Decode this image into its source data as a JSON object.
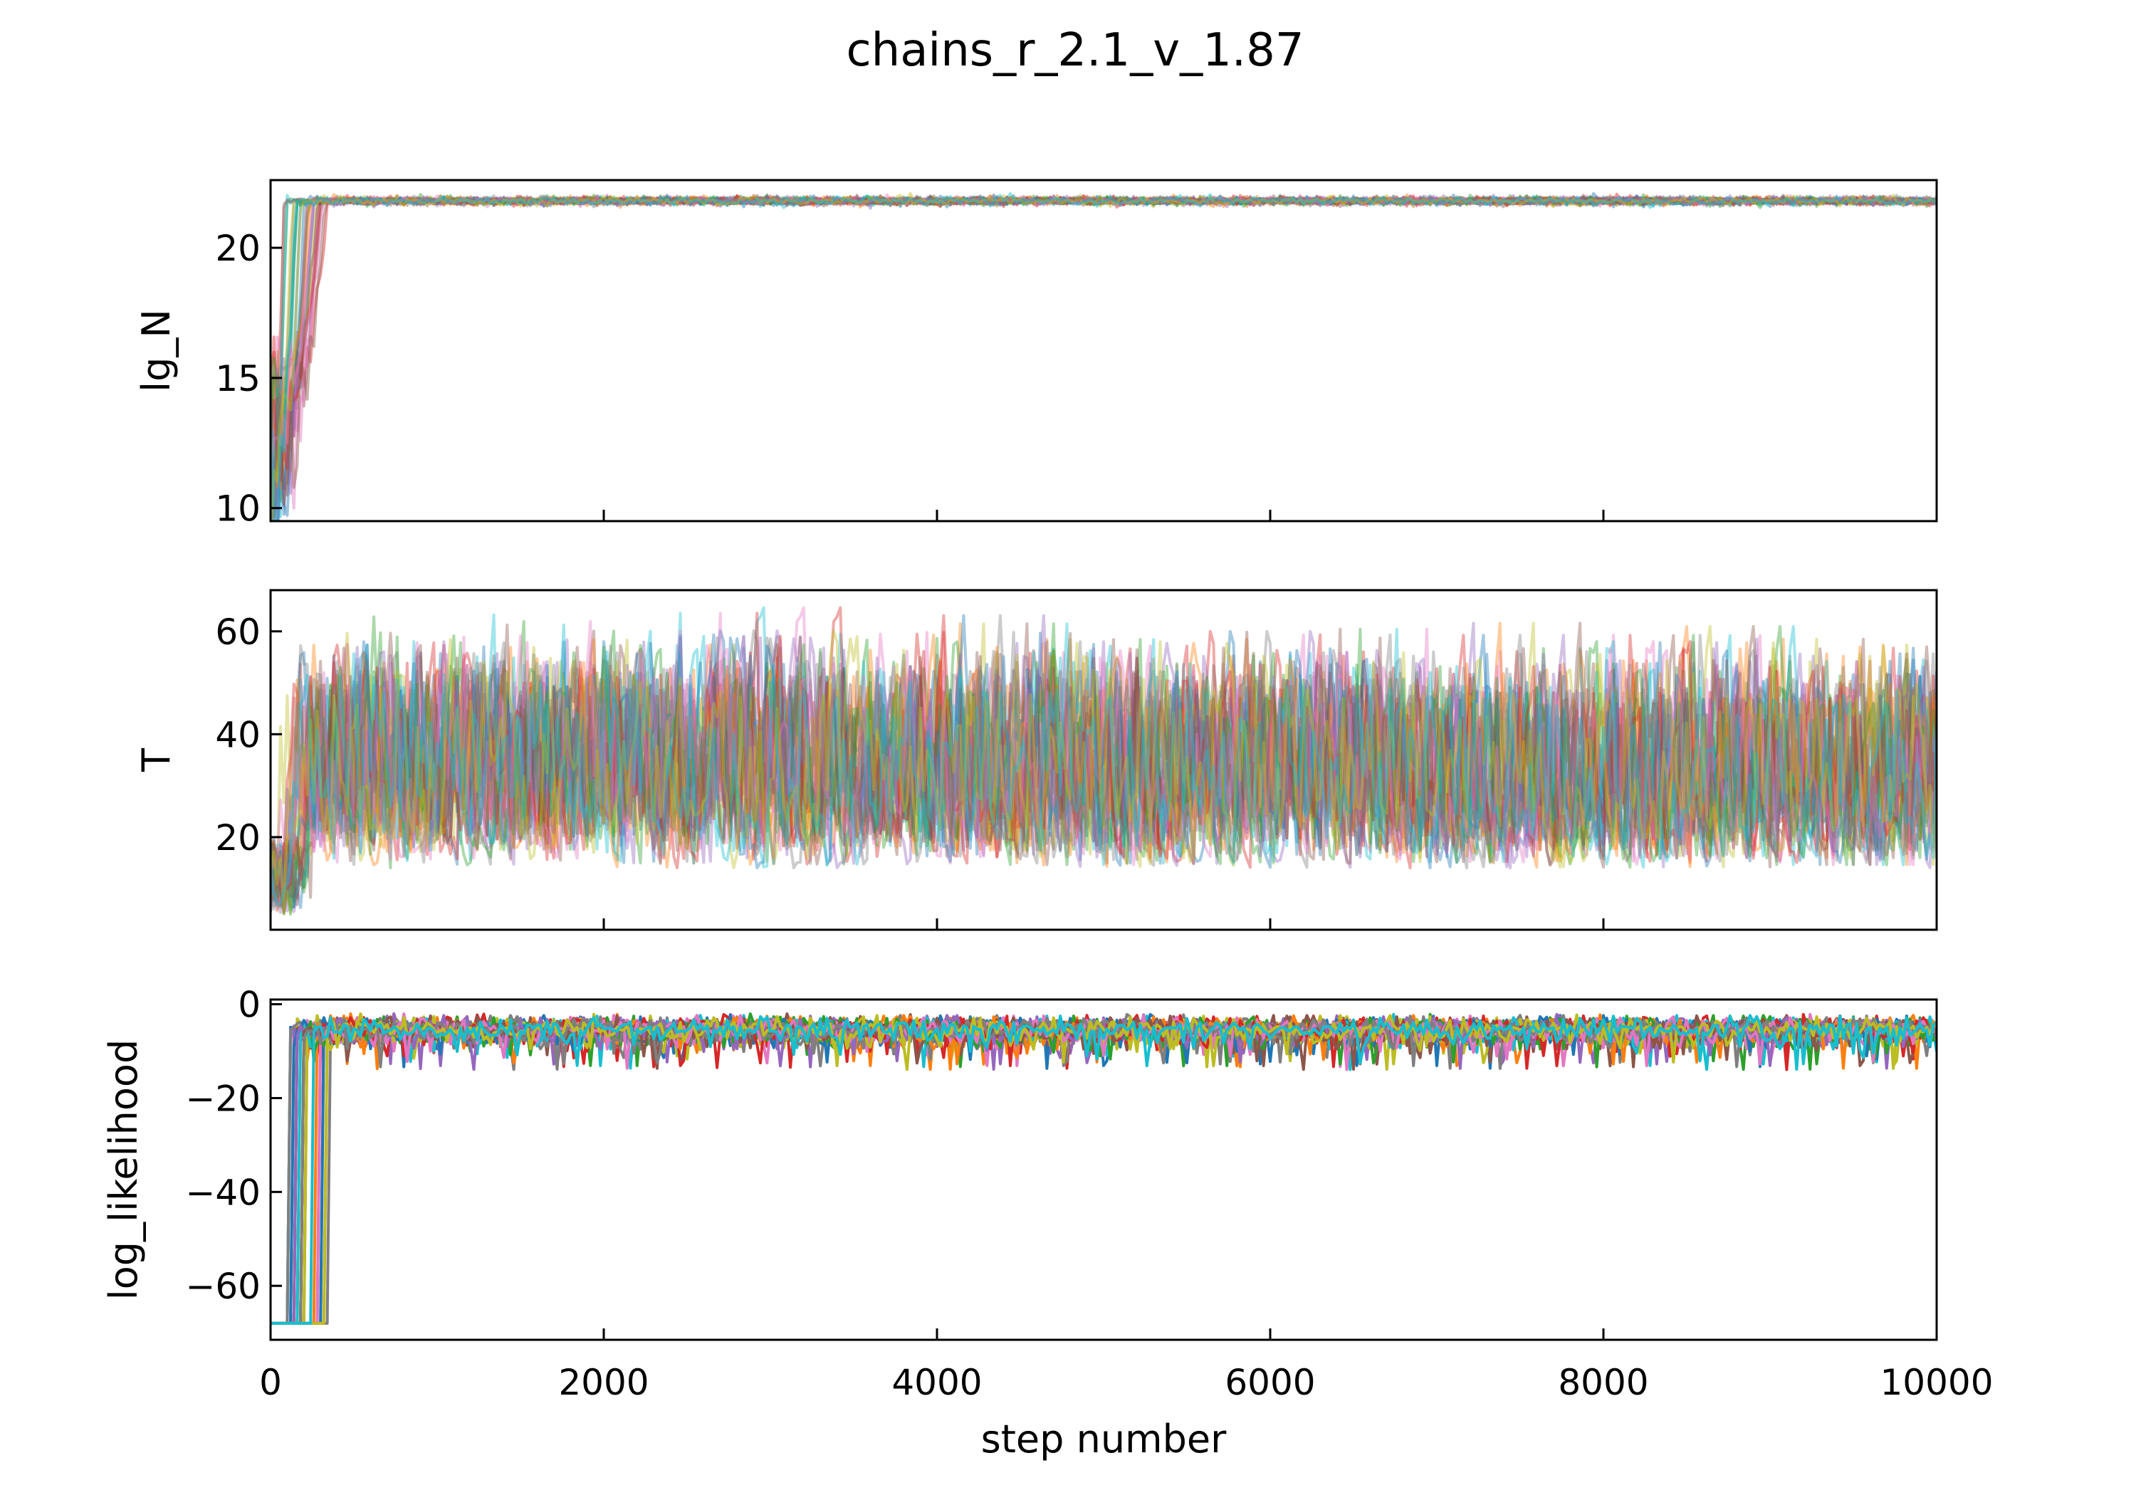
{
  "title": "chains_r_2.1_v_1.87",
  "chart_data": [
    {
      "type": "line",
      "panel": "lg_N",
      "xlabel": "",
      "ylabel": "lg_N",
      "xlim": [
        0,
        10000
      ],
      "ylim": [
        9.5,
        22.6
      ],
      "yticks": [
        10,
        15,
        20
      ],
      "ytick_labels": [
        "10",
        "15",
        "20"
      ],
      "xticks": [
        2000,
        4000,
        6000,
        8000
      ],
      "xtick_labels": [],
      "n_walkers": 30,
      "burn_in_steps": [
        0,
        350
      ],
      "burn_in_start_range": [
        10.0,
        21.8
      ],
      "converged_value": 21.8,
      "converged_spread": 0.15,
      "alpha": 0.45
    },
    {
      "type": "line",
      "panel": "T",
      "xlabel": "",
      "ylabel": "T",
      "xlim": [
        0,
        10000
      ],
      "ylim": [
        2.0,
        68.0
      ],
      "yticks": [
        20,
        40,
        60
      ],
      "ytick_labels": [
        "20",
        "40",
        "60"
      ],
      "xticks": [
        2000,
        4000,
        6000,
        8000
      ],
      "xtick_labels": [],
      "n_walkers": 30,
      "burn_in_steps": [
        0,
        250
      ],
      "burn_in_start_range": [
        5.0,
        20.0
      ],
      "sample_range": [
        14.0,
        65.0
      ],
      "alpha": 0.4
    },
    {
      "type": "line",
      "panel": "log_likelihood",
      "xlabel": "step number",
      "ylabel": "log_likelihood",
      "xlim": [
        0,
        10000
      ],
      "ylim": [
        -71.5,
        1.0
      ],
      "yticks": [
        -60,
        -40,
        -20,
        0
      ],
      "ytick_labels": [
        "−60",
        "−40",
        "−20",
        "0"
      ],
      "xticks": [
        0,
        2000,
        4000,
        6000,
        8000,
        10000
      ],
      "xtick_labels": [
        "0",
        "2000",
        "4000",
        "6000",
        "8000",
        "10000"
      ],
      "n_walkers": 30,
      "initial_value": -68.0,
      "burn_in_steps": [
        0,
        350
      ],
      "sample_range": [
        -14.0,
        -2.0
      ],
      "typical_value": -5.0,
      "alpha": 1.0
    }
  ],
  "colors": {
    "tab10": [
      "#1f77b4",
      "#ff7f0e",
      "#2ca02c",
      "#d62728",
      "#9467bd",
      "#8c564b",
      "#e377c2",
      "#7f7f7f",
      "#bcbd22",
      "#17becf"
    ],
    "axes": "#000000",
    "background": "#ffffff"
  }
}
